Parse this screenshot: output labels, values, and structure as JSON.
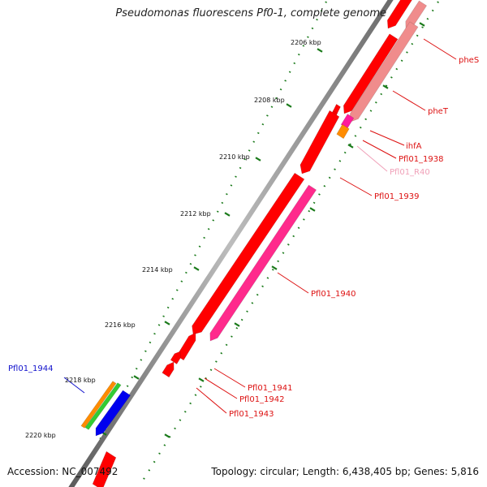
{
  "title": "Pseudomonas fluorescens Pf0-1, complete genome",
  "footer": {
    "accession": "Accession: NC_007492",
    "topology": "Topology: circular; Length: 6,438,405 bp; Genes: 5,816"
  },
  "ticks": [
    {
      "label": "2206 kbp"
    },
    {
      "label": "2208 kbp"
    },
    {
      "label": "2210 kbp"
    },
    {
      "label": "2212 kbp"
    },
    {
      "label": "2214 kbp"
    },
    {
      "label": "2216 kbp"
    },
    {
      "label": "2218 kbp"
    },
    {
      "label": "2220 kbp"
    }
  ],
  "genes": [
    {
      "name": "pheS",
      "color": "#dd1111"
    },
    {
      "name": "pheT",
      "color": "#dd1111"
    },
    {
      "name": "ihfA",
      "color": "#dd1111"
    },
    {
      "name": "Pfl01_1938",
      "color": "#dd1111"
    },
    {
      "name": "Pfl01_R40",
      "color": "#f0a0b8"
    },
    {
      "name": "Pfl01_1939",
      "color": "#dd1111"
    },
    {
      "name": "Pfl01_1940",
      "color": "#dd1111"
    },
    {
      "name": "Pfl01_1941",
      "color": "#dd1111"
    },
    {
      "name": "Pfl01_1942",
      "color": "#dd1111"
    },
    {
      "name": "Pfl01_1943",
      "color": "#dd1111"
    },
    {
      "name": "Pfl01_1944",
      "color": "#1111cc"
    }
  ],
  "colors": {
    "feature_red": "#ff0000",
    "feature_pink": "#ff2a8c",
    "feature_light_pink": "#f08c8c",
    "feature_orange": "#ff8c00",
    "feature_green": "#33cc33",
    "feature_blue": "#0000ee",
    "backbone": "#888888",
    "tick": "#1a7a1a"
  }
}
